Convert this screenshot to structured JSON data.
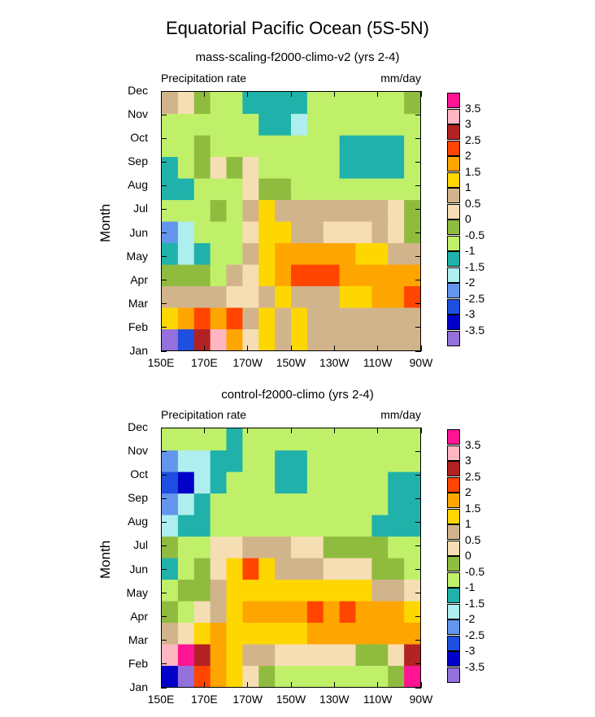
{
  "title": "Equatorial Pacific Ocean (5S-5N)",
  "chart_data": [
    {
      "type": "heatmap",
      "title": "mass-scaling-f2000-climo-v2 (yrs 2-4)",
      "left_label": "Precipitation rate",
      "right_label": "mm/day",
      "ylabel": "Month",
      "xlabel": "",
      "x_ticks": [
        "150E",
        "170E",
        "170W",
        "150W",
        "130W",
        "110W",
        "90W"
      ],
      "y_ticks": [
        "Jan",
        "Feb",
        "Mar",
        "Apr",
        "May",
        "Jun",
        "Jul",
        "Aug",
        "Sep",
        "Oct",
        "Nov",
        "Dec"
      ],
      "x_range_deg_east": [
        150,
        270
      ],
      "colorbar": {
        "levels": [
          "3.5",
          "3",
          "2.5",
          "2",
          "1.5",
          "1",
          "0.5",
          "0",
          "-0.5",
          "-1",
          "-1.5",
          "-2",
          "-2.5",
          "-3",
          "-3.5"
        ],
        "colors": [
          "#ff1493",
          "#ffb6c1",
          "#b22222",
          "#ff4500",
          "#ffa500",
          "#ffd700",
          "#d2b48c",
          "#f5deb3",
          "#8fbc3f",
          "#c0f06a",
          "#20b2aa",
          "#afeeee",
          "#6495ed",
          "#1e4fe0",
          "#0000c8",
          "#9370db"
        ]
      },
      "grid": [
        [
          15,
          13,
          2,
          1,
          4,
          7,
          5,
          6,
          5,
          6,
          6,
          6,
          6,
          6,
          6,
          6
        ],
        [
          5,
          4,
          3,
          4,
          3,
          6,
          5,
          6,
          5,
          6,
          6,
          6,
          6,
          6,
          6,
          6
        ],
        [
          6,
          6,
          6,
          6,
          7,
          7,
          6,
          5,
          6,
          6,
          6,
          5,
          5,
          4,
          4,
          3
        ],
        [
          8,
          8,
          8,
          9,
          6,
          7,
          5,
          4,
          3,
          3,
          3,
          4,
          4,
          4,
          4,
          4
        ],
        [
          10,
          11,
          10,
          9,
          9,
          6,
          5,
          4,
          4,
          4,
          4,
          4,
          5,
          5,
          6,
          6
        ],
        [
          12,
          11,
          9,
          9,
          9,
          7,
          5,
          5,
          6,
          6,
          7,
          7,
          7,
          6,
          7,
          8
        ],
        [
          9,
          9,
          9,
          8,
          9,
          6,
          5,
          6,
          6,
          6,
          6,
          6,
          6,
          6,
          7,
          8
        ],
        [
          10,
          10,
          9,
          9,
          9,
          7,
          8,
          8,
          9,
          9,
          9,
          9,
          9,
          9,
          9,
          9
        ],
        [
          10,
          9,
          8,
          7,
          8,
          7,
          9,
          9,
          9,
          9,
          9,
          10,
          10,
          10,
          10,
          9
        ],
        [
          9,
          9,
          8,
          9,
          9,
          9,
          9,
          9,
          9,
          9,
          9,
          10,
          10,
          10,
          10,
          9
        ],
        [
          9,
          9,
          9,
          9,
          9,
          9,
          10,
          10,
          11,
          9,
          9,
          9,
          9,
          9,
          9,
          9
        ],
        [
          6,
          7,
          8,
          9,
          9,
          10,
          10,
          10,
          10,
          9,
          9,
          9,
          9,
          9,
          9,
          8
        ]
      ]
    },
    {
      "type": "heatmap",
      "title": "control-f2000-climo (yrs 2-4)",
      "left_label": "Precipitation rate",
      "right_label": "mm/day",
      "ylabel": "Month",
      "xlabel": "",
      "x_ticks": [
        "150E",
        "170E",
        "170W",
        "150W",
        "130W",
        "110W",
        "90W"
      ],
      "y_ticks": [
        "Jan",
        "Feb",
        "Mar",
        "Apr",
        "May",
        "Jun",
        "Jul",
        "Aug",
        "Sep",
        "Oct",
        "Nov",
        "Dec"
      ],
      "x_range_deg_east": [
        150,
        270
      ],
      "colorbar": {
        "levels": [
          "3.5",
          "3",
          "2.5",
          "2",
          "1.5",
          "1",
          "0.5",
          "0",
          "-0.5",
          "-1",
          "-1.5",
          "-2",
          "-2.5",
          "-3",
          "-3.5"
        ],
        "colors": [
          "#ff1493",
          "#ffb6c1",
          "#b22222",
          "#ff4500",
          "#ffa500",
          "#ffd700",
          "#d2b48c",
          "#f5deb3",
          "#8fbc3f",
          "#c0f06a",
          "#20b2aa",
          "#afeeee",
          "#6495ed",
          "#1e4fe0",
          "#0000c8",
          "#9370db"
        ]
      },
      "grid": [
        [
          14,
          15,
          3,
          4,
          5,
          7,
          8,
          9,
          9,
          9,
          9,
          9,
          9,
          9,
          8,
          0
        ],
        [
          1,
          0,
          2,
          4,
          5,
          6,
          6,
          7,
          7,
          7,
          7,
          7,
          8,
          8,
          7,
          2
        ],
        [
          6,
          7,
          5,
          4,
          5,
          5,
          5,
          5,
          5,
          4,
          4,
          4,
          4,
          4,
          4,
          4
        ],
        [
          8,
          9,
          7,
          6,
          5,
          4,
          4,
          4,
          4,
          3,
          4,
          3,
          4,
          4,
          4,
          5
        ],
        [
          9,
          8,
          8,
          6,
          5,
          5,
          5,
          5,
          5,
          5,
          5,
          5,
          5,
          6,
          6,
          7
        ],
        [
          10,
          9,
          8,
          7,
          5,
          3,
          5,
          6,
          6,
          6,
          7,
          7,
          7,
          8,
          8,
          9
        ],
        [
          8,
          9,
          9,
          7,
          7,
          6,
          6,
          6,
          7,
          7,
          8,
          8,
          8,
          8,
          9,
          9
        ],
        [
          11,
          10,
          10,
          9,
          9,
          9,
          9,
          9,
          9,
          9,
          9,
          9,
          9,
          10,
          10,
          10
        ],
        [
          12,
          11,
          10,
          9,
          9,
          9,
          9,
          9,
          9,
          9,
          9,
          9,
          9,
          9,
          10,
          10
        ],
        [
          13,
          14,
          11,
          10,
          9,
          9,
          9,
          10,
          10,
          9,
          9,
          9,
          9,
          9,
          10,
          10
        ],
        [
          12,
          11,
          11,
          10,
          10,
          9,
          9,
          10,
          10,
          9,
          9,
          9,
          9,
          9,
          9,
          9
        ],
        [
          9,
          9,
          9,
          9,
          10,
          9,
          9,
          9,
          9,
          9,
          9,
          9,
          9,
          9,
          9,
          9
        ]
      ]
    }
  ]
}
